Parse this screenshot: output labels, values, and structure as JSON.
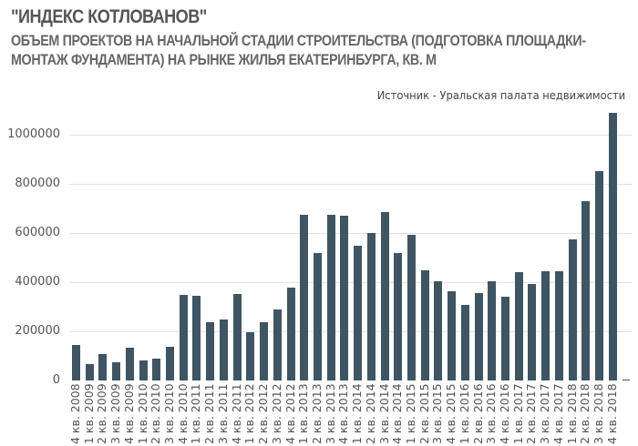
{
  "header": {
    "title": "\"ИНДЕКС КОТЛОВАНОВ\"",
    "subtitle": "ОБЪЕМ ПРОЕКТОВ НА НАЧАЛЬНОЙ СТАДИИ СТРОИТЕЛЬСТВА (ПОДГОТОВКА ПЛОЩАДКИ-МОНТАЖ ФУНДАМЕНТА) НА РЫНКЕ ЖИЛЬЯ ЕКАТЕРИНБУРГА, КВ. М",
    "source": "Источник - Уральская палата недвижимости"
  },
  "colors": {
    "bar": "#3f5563",
    "grid": "#e3e3e3",
    "text": "#555555"
  },
  "chart_data": {
    "type": "bar",
    "title": "\"ИНДЕКС КОТЛОВАНОВ\"",
    "subtitle": "ОБЪЕМ ПРОЕКТОВ НА НАЧАЛЬНОЙ СТАДИИ СТРОИТЕЛЬСТВА (ПОДГОТОВКА ПЛОЩАДКИ-МОНТАЖ ФУНДАМЕНТА) НА РЫНКЕ ЖИЛЬЯ ЕКАТЕРИНБУРГА, КВ. М",
    "source": "Источник - Уральская палата недвижимости",
    "xlabel": "",
    "ylabel": "",
    "ylim": [
      0,
      1100000
    ],
    "yticks": [
      0,
      200000,
      400000,
      600000,
      800000,
      1000000
    ],
    "ytick_labels": [
      "0",
      "200000",
      "400000",
      "600000",
      "800000",
      "1000000"
    ],
    "grid": true,
    "legend": null,
    "categories": [
      "4 кв. 2008",
      "1 кв. 2009",
      "2 кв. 2009",
      "3 кв. 2009",
      "4 кв. 2009",
      "1 кв. 2010",
      "2 кв. 2010",
      "3 кв. 2010",
      "4 кв. 2010",
      "1 кв. 2011",
      "2 кв. 2011",
      "3 кв. 2011",
      "4 кв. 2011",
      "1 кв. 2012",
      "2 кв. 2012",
      "3 кв. 2012",
      "4 кв. 2012",
      "1 кв. 2013",
      "2 кв. 2013",
      "3 кв. 2013",
      "4 кв. 2013",
      "1 кв. 2014",
      "2 кв. 2014",
      "3 кв. 2014",
      "4 кв. 2014",
      "1 кв. 2015",
      "2 кв. 2015",
      "3 кв. 2015",
      "4 кв. 2015",
      "1 кв. 2016",
      "2 кв. 2016",
      "3 кв. 2016",
      "4 кв. 2016",
      "1 кв. 2017",
      "2 кв. 2017",
      "3 кв. 2017",
      "4 кв. 2017",
      "1 кв. 2018",
      "2 кв. 2018",
      "3 кв. 2018",
      "4 кв. 2018"
    ],
    "values": [
      144000,
      67000,
      107000,
      74000,
      133000,
      81000,
      89000,
      137000,
      348000,
      344000,
      238000,
      248000,
      353000,
      197000,
      238000,
      289000,
      378000,
      674000,
      520000,
      674000,
      670000,
      549000,
      601000,
      685000,
      520000,
      594000,
      448000,
      404000,
      363000,
      307000,
      357000,
      404000,
      341000,
      441000,
      393000,
      444000,
      444000,
      574000,
      730000,
      852000,
      1089000
    ]
  }
}
